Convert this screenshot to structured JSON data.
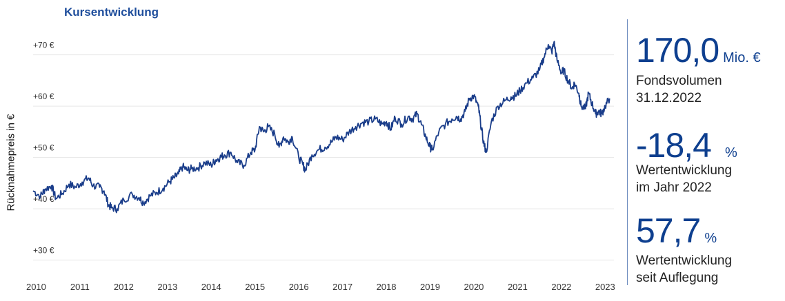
{
  "header": {
    "title": "Kursentwicklung"
  },
  "chart_data": {
    "type": "line",
    "title": "Kursentwicklung",
    "ylabel": "Rücknahmepreis in €",
    "xlabel": "",
    "ylim": [
      27,
      78
    ],
    "xlim": [
      2009.93,
      2023.2
    ],
    "grid": true,
    "y_ticks": [
      {
        "value": 30,
        "label": "+30 €"
      },
      {
        "value": 40,
        "label": "+40 €"
      },
      {
        "value": 50,
        "label": "+50 €"
      },
      {
        "value": 60,
        "label": "+60 €"
      },
      {
        "value": 70,
        "label": "+70 €"
      }
    ],
    "x_ticks": [
      {
        "value": 2010,
        "label": "2010"
      },
      {
        "value": 2011,
        "label": "2011"
      },
      {
        "value": 2012,
        "label": "2012"
      },
      {
        "value": 2013,
        "label": "2013"
      },
      {
        "value": 2014,
        "label": "2014"
      },
      {
        "value": 2015,
        "label": "2015"
      },
      {
        "value": 2016,
        "label": "2016"
      },
      {
        "value": 2017,
        "label": "2017"
      },
      {
        "value": 2018,
        "label": "2018"
      },
      {
        "value": 2019,
        "label": "2019"
      },
      {
        "value": 2020,
        "label": "2020"
      },
      {
        "value": 2021,
        "label": "2021"
      },
      {
        "value": 2022,
        "label": "2022"
      },
      {
        "value": 2023,
        "label": "2023"
      }
    ],
    "series": [
      {
        "color": "#1a3d8a",
        "x": [
          2009.93,
          2010.1,
          2010.2,
          2010.35,
          2010.45,
          2010.6,
          2010.75,
          2010.9,
          2011.05,
          2011.2,
          2011.3,
          2011.45,
          2011.55,
          2011.65,
          2011.72,
          2011.85,
          2012.0,
          2012.2,
          2012.35,
          2012.45,
          2012.6,
          2012.75,
          2012.9,
          2013.05,
          2013.15,
          2013.25,
          2013.35,
          2013.45,
          2013.55,
          2013.7,
          2013.85,
          2014.0,
          2014.1,
          2014.2,
          2014.3,
          2014.45,
          2014.6,
          2014.75,
          2014.9,
          2015.0,
          2015.1,
          2015.2,
          2015.3,
          2015.45,
          2015.55,
          2015.65,
          2015.75,
          2015.85,
          2016.0,
          2016.1,
          2016.15,
          2016.3,
          2016.45,
          2016.6,
          2016.75,
          2016.85,
          2017.0,
          2017.15,
          2017.3,
          2017.45,
          2017.6,
          2017.75,
          2017.9,
          2018.0,
          2018.1,
          2018.2,
          2018.35,
          2018.5,
          2018.6,
          2018.7,
          2018.8,
          2018.9,
          2019.0,
          2019.05,
          2019.2,
          2019.35,
          2019.5,
          2019.6,
          2019.7,
          2019.8,
          2019.9,
          2020.0,
          2020.1,
          2020.15,
          2020.22,
          2020.28,
          2020.4,
          2020.55,
          2020.7,
          2020.85,
          2020.95,
          2021.05,
          2021.2,
          2021.35,
          2021.5,
          2021.6,
          2021.7,
          2021.78,
          2021.83,
          2021.9,
          2022.0,
          2022.05,
          2022.15,
          2022.25,
          2022.3,
          2022.4,
          2022.45,
          2022.55,
          2022.62,
          2022.7,
          2022.78,
          2022.85,
          2022.92,
          2023.0,
          2023.1
        ],
        "y": [
          43.5,
          42.5,
          43.8,
          44.5,
          42.0,
          43.0,
          44.8,
          44.2,
          45.2,
          46.0,
          44.5,
          44.2,
          43.5,
          40.8,
          40.2,
          40.0,
          41.8,
          42.8,
          42.2,
          41.2,
          42.5,
          43.2,
          44.0,
          45.3,
          46.0,
          46.8,
          48.2,
          47.5,
          47.8,
          48.0,
          49.0,
          48.5,
          49.5,
          50.0,
          50.5,
          51.0,
          49.0,
          48.5,
          51.0,
          51.5,
          56.0,
          55.0,
          56.0,
          54.5,
          52.0,
          54.0,
          53.0,
          54.0,
          50.0,
          48.5,
          47.5,
          50.5,
          51.5,
          52.0,
          53.0,
          54.0,
          53.5,
          55.0,
          56.0,
          56.8,
          57.0,
          57.5,
          56.5,
          57.0,
          55.5,
          57.8,
          56.5,
          58.0,
          57.5,
          58.5,
          56.5,
          54.0,
          52.0,
          51.5,
          55.0,
          56.5,
          57.5,
          58.0,
          57.5,
          59.0,
          61.5,
          62.0,
          60.0,
          57.0,
          53.0,
          51.0,
          57.0,
          60.0,
          61.0,
          61.8,
          62.0,
          63.0,
          64.5,
          65.5,
          67.0,
          69.5,
          72.0,
          70.5,
          72.5,
          69.0,
          66.5,
          67.0,
          65.0,
          63.5,
          64.5,
          62.5,
          60.0,
          59.5,
          62.5,
          60.5,
          58.5,
          59.0,
          58.5,
          60.0,
          61.5
        ]
      }
    ]
  },
  "stats": [
    {
      "value": "170,0",
      "unit": "Mio. €",
      "label1": "Fondsvolumen",
      "label2": "31.12.2022"
    },
    {
      "value": "-18,4",
      "unit": "%",
      "label1": "Wertentwicklung",
      "label2": "im Jahr 2022"
    },
    {
      "value": "57,7",
      "unit": "%",
      "label1": "Wertentwicklung",
      "label2": "seit Auflegung"
    }
  ]
}
